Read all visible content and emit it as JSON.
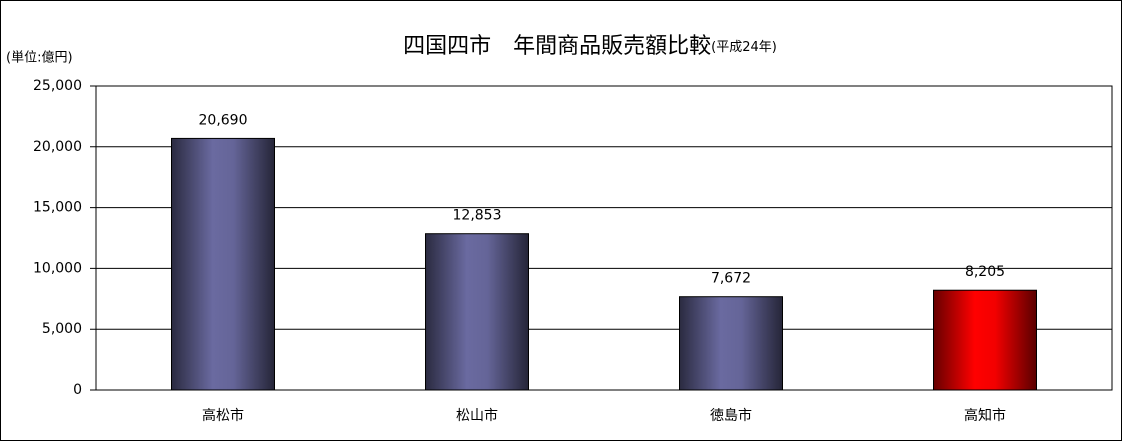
{
  "chart_data": {
    "type": "bar",
    "title": "四国四市　年間商品販売額比較",
    "subtitle": "(平成24年)",
    "y_label": "(単位:億円)",
    "categories": [
      "高松市",
      "松山市",
      "徳島市",
      "高知市"
    ],
    "values": [
      20690,
      12853,
      7672,
      8205
    ],
    "value_labels": [
      "20,690",
      "12,853",
      "7,672",
      "8,205"
    ],
    "colors": [
      "#6a6aa0",
      "#6a6aa0",
      "#6a6aa0",
      "#ff0000"
    ],
    "ylim": [
      0,
      25000
    ],
    "yticks": [
      0,
      {
        "value": 5000,
        "label": "5,000"
      },
      {
        "value": 10000,
        "label": "10,000"
      },
      {
        "value": 15000,
        "label": "15,000"
      },
      {
        "value": 20000,
        "label": "20,000"
      },
      {
        "value": 25000,
        "label": "25,000"
      }
    ],
    "grid": true
  }
}
